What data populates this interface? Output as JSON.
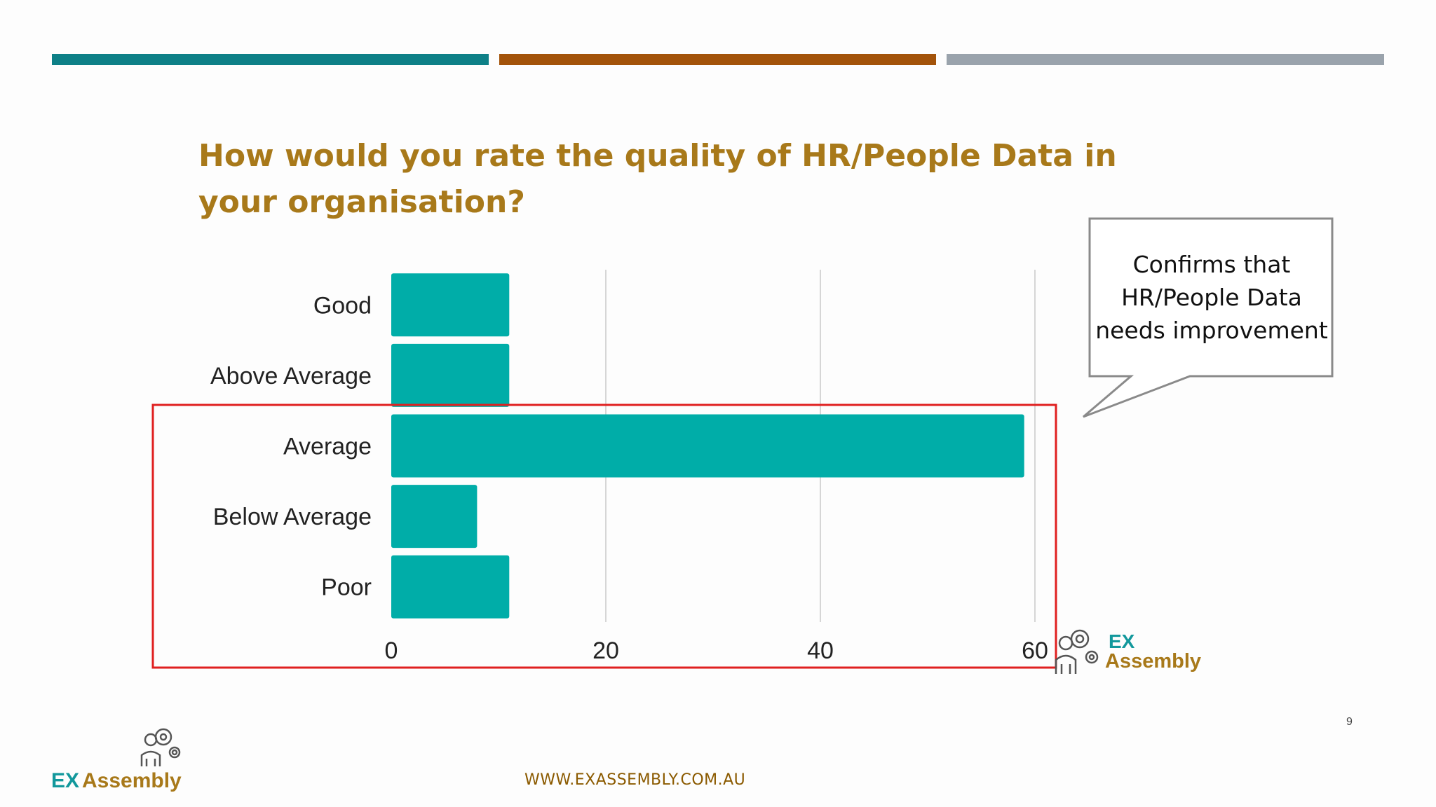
{
  "slide": {
    "title": "How would you rate the quality of HR/People Data in your organisation?",
    "title_color": "#A8791A",
    "page_number": "9",
    "footer_url": "WWW.EXASSEMBLY.COM.AU",
    "footer_color": "#8B5A00",
    "top_bar_colors": [
      "#0E8087",
      "#A3530A",
      "#9AA3AC"
    ]
  },
  "callout": {
    "text": "Confirms that HR/People Data needs improvement"
  },
  "highlight": {
    "color": "#E02020"
  },
  "logo": {
    "ex": "EX",
    "assembly": "Assembly",
    "ex_color": "#12989C",
    "assembly_color": "#A8791A",
    "icon": "people-gears-icon"
  },
  "chart_data": {
    "type": "bar",
    "orientation": "horizontal",
    "categories": [
      "Good",
      "Above Average",
      "Average",
      "Below Average",
      "Poor"
    ],
    "values": [
      11,
      11,
      59,
      8,
      11
    ],
    "xlim": [
      0,
      60
    ],
    "xticks": [
      "0",
      "20",
      "40",
      "60"
    ],
    "bar_color": "#00ADA8",
    "grid": true
  }
}
